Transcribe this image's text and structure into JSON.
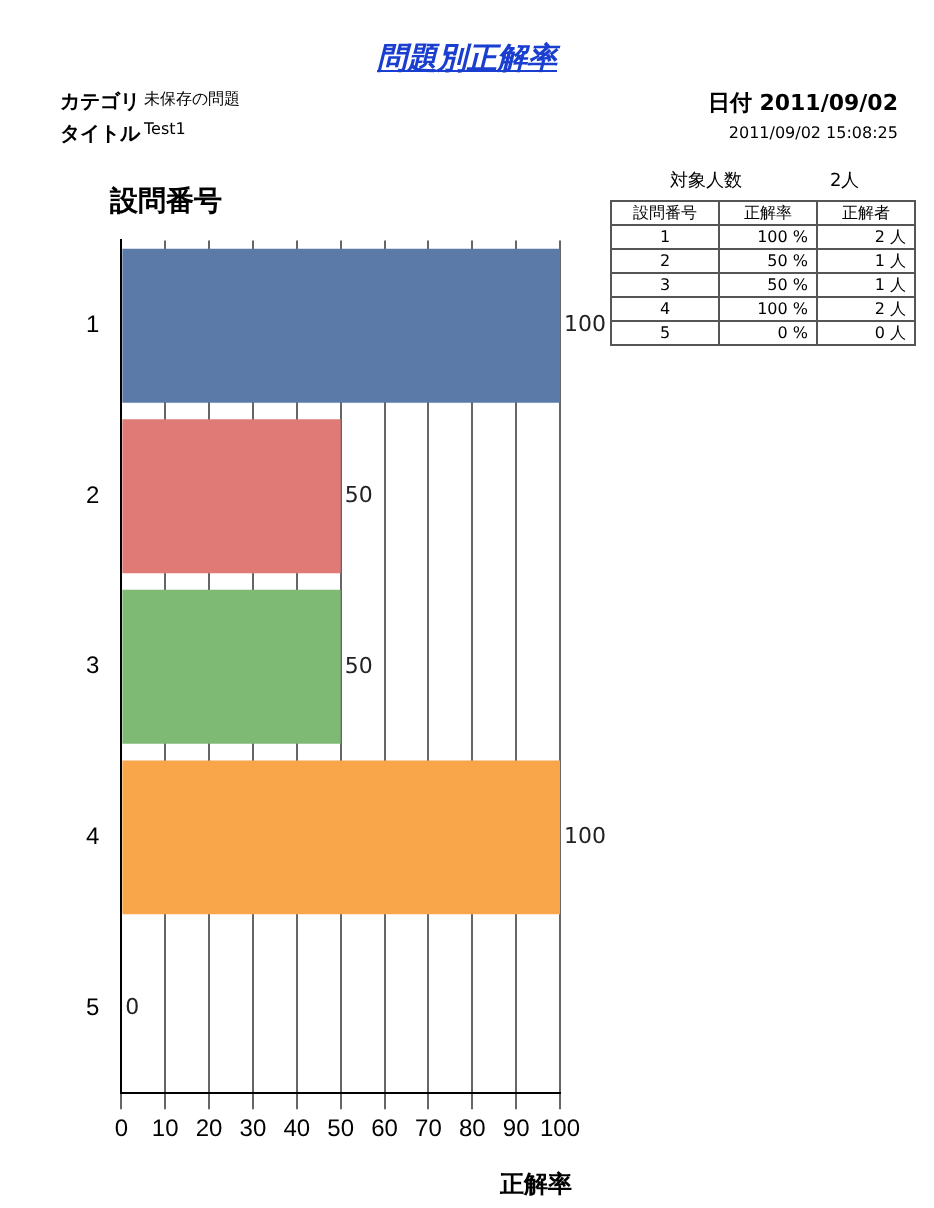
{
  "chart_data": {
    "type": "bar",
    "orientation": "horizontal",
    "title": "問題別正解率",
    "xlabel": "正解率",
    "ylabel": "設問番号",
    "categories": [
      "1",
      "2",
      "3",
      "4",
      "5"
    ],
    "values": [
      100,
      50,
      50,
      100,
      0
    ],
    "colors": [
      "#5b7aa8",
      "#e07a76",
      "#7fba74",
      "#f9a64a",
      "#c8c020"
    ],
    "xlim": [
      0,
      100
    ],
    "xticks": [
      0,
      10,
      20,
      30,
      40,
      50,
      60,
      70,
      80,
      90,
      100
    ],
    "grid": "x",
    "legend": false,
    "data_labels": true,
    "annotations": [
      "カテゴリ",
      "未保存の問題",
      "タイトル",
      "Test1",
      "日付 2011/09/02",
      "2011/09/02 15:08:25",
      "対象人数",
      "2人",
      "設問番号",
      "正解率",
      "正解者",
      "1",
      "100 %",
      "2 人",
      "2",
      "50 %",
      "1 人",
      "3",
      "50 %",
      "1 人",
      "4",
      "100 %",
      "2 人",
      "5",
      "0 %",
      "0 人"
    ]
  }
}
